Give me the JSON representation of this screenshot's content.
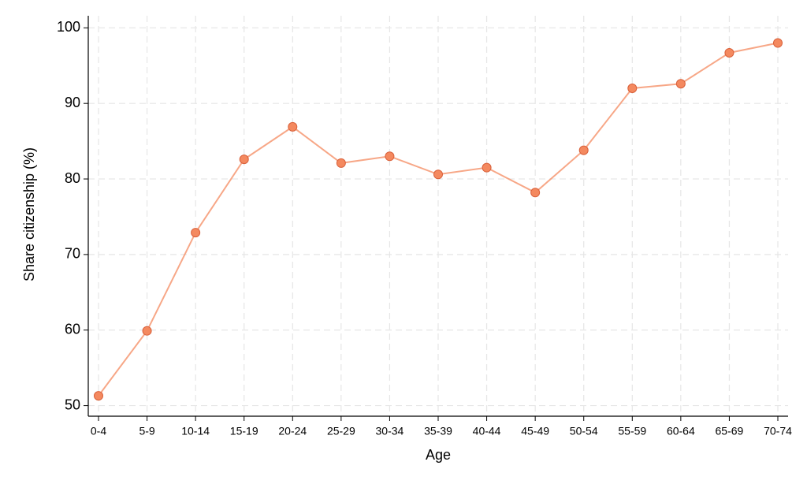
{
  "chart_data": {
    "type": "line",
    "x_label": "Age",
    "y_label": "Share citizenship (%)",
    "categories": [
      "0-4",
      "5-9",
      "10-14",
      "15-19",
      "20-24",
      "25-29",
      "30-34",
      "35-39",
      "40-44",
      "45-49",
      "50-54",
      "55-59",
      "60-64",
      "65-69",
      "70-74"
    ],
    "series": [
      {
        "name": "Share citizenship",
        "color": "#f4895f",
        "values": [
          51.3,
          59.9,
          72.9,
          82.6,
          86.9,
          82.1,
          83.0,
          80.6,
          81.5,
          78.2,
          83.8,
          92.0,
          92.6,
          96.7,
          98.0
        ]
      }
    ],
    "ylim": [
      48.6,
      101.6
    ],
    "yticks": [
      50,
      60,
      70,
      80,
      90,
      100
    ],
    "grid": true
  }
}
